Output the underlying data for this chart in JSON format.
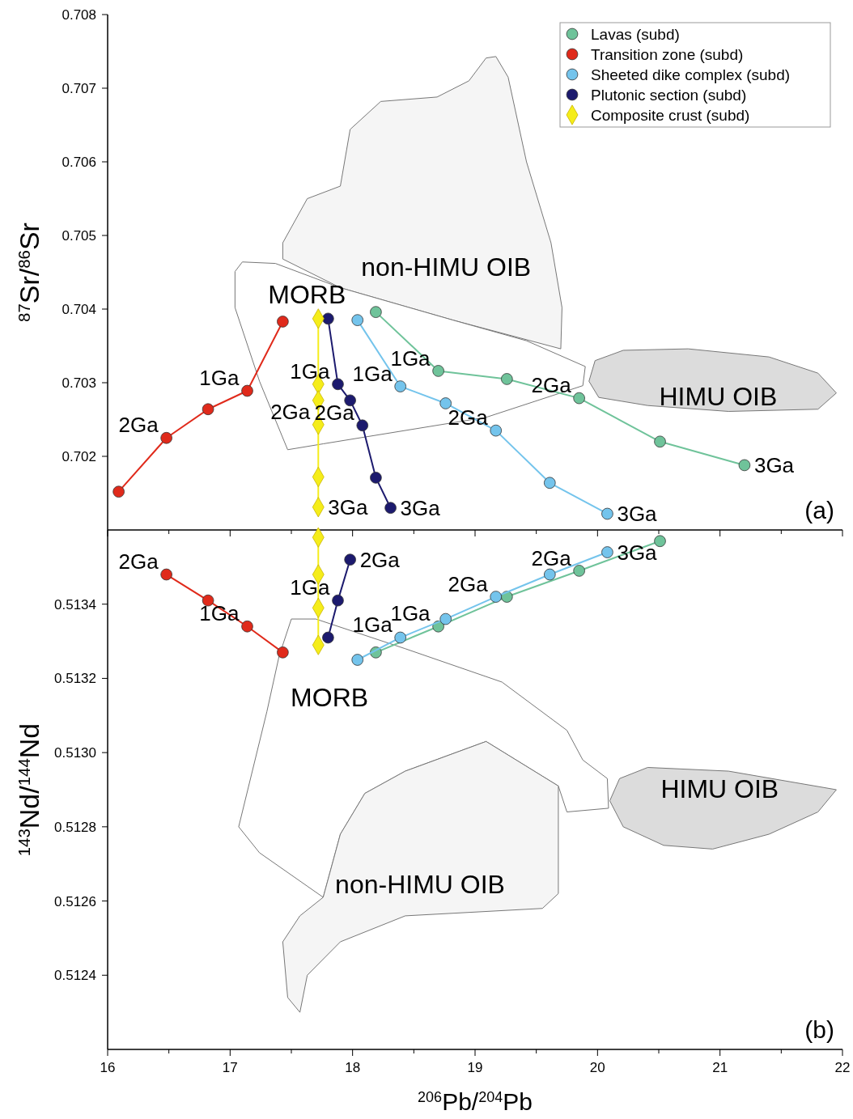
{
  "chart_data": [
    {
      "type": "line",
      "xlim": [
        16,
        22
      ],
      "xticks": [
        16,
        {
          "value": 16.5,
          "label": null
        },
        17,
        {
          "value": 17.5,
          "label": null
        },
        18,
        {
          "value": 18.5,
          "label": null
        },
        19,
        {
          "value": 19.5,
          "label": null
        },
        20,
        {
          "value": 20.5,
          "label": null
        },
        21,
        {
          "value": 21.5,
          "label": null
        },
        22
      ],
      "ylim": [
        0.701,
        0.708
      ],
      "yticks": [
        0.702,
        0.703,
        0.704,
        0.705,
        0.706,
        0.707,
        0.708
      ],
      "ylabel": "$^{87}$Sr/$^{86}$Sr",
      "tick_labels": "y",
      "legend": "top right",
      "grid": false,
      "marker": "circle",
      "series": [
        {
          "type": "area",
          "name": "non-HIMU OIB",
          "color": "#f5f5f5",
          "marker": "none",
          "x": [
            18.82,
            17.9,
            17.43,
            17.43,
            17.63,
            17.9,
            17.98,
            18.23,
            18.69,
            18.95,
            19.09,
            19.17,
            19.27,
            19.42,
            19.62,
            19.71,
            19.7,
            18.82
          ],
          "values": [
            0.70385,
            0.70429,
            0.70468,
            0.7049,
            0.7055,
            0.70567,
            0.70644,
            0.70682,
            0.70688,
            0.7071,
            0.70741,
            0.70743,
            0.70715,
            0.706,
            0.7049,
            0.70402,
            0.70346,
            0.70385
          ]
        },
        {
          "type": "area",
          "name": "MORB",
          "color": "#ffffff",
          "marker": "none",
          "x": [
            17.04,
            17.1,
            17.37,
            17.9,
            18.82,
            19.42,
            19.9,
            19.88,
            19.09,
            17.76,
            17.47,
            17.24,
            17.04,
            17.04
          ],
          "values": [
            0.70451,
            0.70464,
            0.70462,
            0.70429,
            0.70385,
            0.70357,
            0.70322,
            0.70296,
            0.70253,
            0.70217,
            0.70209,
            0.70302,
            0.70402,
            0.70451
          ]
        },
        {
          "type": "area",
          "name": "HIMU OIB",
          "color": "#dcdcdc",
          "marker": "none",
          "x": [
            21.07,
            20.41,
            20.01,
            19.93,
            19.98,
            20.21,
            20.74,
            21.4,
            21.8,
            21.95,
            21.8,
            21.07
          ],
          "values": [
            0.70261,
            0.70269,
            0.7028,
            0.70302,
            0.7033,
            0.70344,
            0.70346,
            0.70335,
            0.70313,
            0.70286,
            0.70264,
            0.70261
          ]
        },
        {
          "name": "Lavas (subd)",
          "color": "#6fc39a",
          "x": [
            18.19,
            18.7,
            19.26,
            19.85,
            20.51,
            21.2
          ],
          "values": [
            0.70396,
            0.70316,
            0.70305,
            0.70279,
            0.7022,
            0.70188
          ]
        },
        {
          "name": "Transition zone (subd)",
          "color": "#e02a1b",
          "x": [
            16.09,
            16.48,
            16.82,
            17.14,
            17.43
          ],
          "values": [
            0.70152,
            0.70225,
            0.70264,
            0.70289,
            0.70383
          ]
        },
        {
          "name": "Sheeted dike complex (subd)",
          "color": "#74c4ec",
          "x": [
            18.04,
            18.39,
            18.76,
            19.17,
            19.61,
            20.08
          ],
          "values": [
            0.70385,
            0.70295,
            0.70272,
            0.70235,
            0.70164,
            0.70122
          ]
        },
        {
          "name": "Plutonic section (subd)",
          "color": "#1c1a6e",
          "x": [
            17.8,
            17.88,
            17.98,
            18.08,
            18.19,
            18.31
          ],
          "values": [
            0.70387,
            0.70298,
            0.70276,
            0.70242,
            0.70171,
            0.7013
          ]
        },
        {
          "name": "Composite crust (subd)",
          "color": "#f5ed1a",
          "marker": "diamond",
          "x": [
            17.72,
            17.72,
            17.72,
            17.72,
            17.72,
            17.72
          ],
          "values": [
            0.70387,
            0.70298,
            0.70276,
            0.70243,
            0.70172,
            0.70131
          ]
        }
      ],
      "annotations": [
        {
          "text": "1Ga",
          "x": 17.14,
          "y": 0.70289
        },
        {
          "text": "2Ga",
          "x": 16.48,
          "y": 0.70225
        },
        {
          "text": "1Ga",
          "x": 17.88,
          "y": 0.70298
        },
        {
          "text": "2Ga",
          "x": 17.72,
          "y": 0.70243
        },
        {
          "text": "2Ga",
          "x": 18.08,
          "y": 0.70242
        },
        {
          "text": "3Ga",
          "x": 17.72,
          "y": 0.70131
        },
        {
          "text": "3Ga",
          "x": 18.31,
          "y": 0.7013
        },
        {
          "text": "1Ga",
          "x": 18.7,
          "y": 0.70316
        },
        {
          "text": "1Ga",
          "x": 18.39,
          "y": 0.70295
        },
        {
          "text": "2Ga",
          "x": 19.17,
          "y": 0.70235
        },
        {
          "text": "2Ga",
          "x": 19.85,
          "y": 0.70279
        },
        {
          "text": "3Ga",
          "x": 20.08,
          "y": 0.70122
        },
        {
          "text": "3Ga",
          "x": 21.2,
          "y": 0.70188
        },
        "(a)"
      ]
    },
    {
      "type": "line",
      "xlim": [
        16,
        22
      ],
      "xticks": [
        16,
        {
          "value": 16.5,
          "label": null
        },
        17,
        {
          "value": 17.5,
          "label": null
        },
        18,
        {
          "value": 18.5,
          "label": null
        },
        19,
        {
          "value": 19.5,
          "label": null
        },
        20,
        {
          "value": 20.5,
          "label": null
        },
        21,
        {
          "value": 21.5,
          "label": null
        },
        22
      ],
      "ylim": [
        0.5122,
        0.5136
      ],
      "yticks": [
        {
          "value": 0.5124,
          "label": "0.5124"
        },
        {
          "value": 0.5126,
          "label": "0.5126"
        },
        {
          "value": 0.5128,
          "label": "0.5128"
        },
        {
          "value": 0.513,
          "label": "0.5130"
        },
        {
          "value": 0.5132,
          "label": "0.5132"
        },
        {
          "value": 0.5134,
          "label": "0.5134"
        }
      ],
      "xlabel": "$^{206}$Pb/$^{204}$Pb",
      "ylabel": "$^{143}$Nd/$^{144}$Nd",
      "grid": false,
      "marker": "circle",
      "series": [
        {
          "type": "area",
          "name": "MORB",
          "color": "#ffffff",
          "marker": "none",
          "x": [
            17.4,
            17.5,
            17.7,
            18.43,
            19.22,
            19.75,
            19.88,
            20.08,
            20.09,
            19.75,
            19.68,
            19.09,
            18.43,
            18.1,
            17.9,
            17.76,
            17.24,
            17.07,
            17.3,
            17.4
          ],
          "values": [
            0.51326,
            0.51336,
            0.51336,
            0.51328,
            0.51319,
            0.51306,
            0.51298,
            0.51293,
            0.51285,
            0.51284,
            0.51291,
            0.51303,
            0.51295,
            0.51289,
            0.51278,
            0.51261,
            0.51273,
            0.5128,
            0.51311,
            0.51326
          ]
        },
        {
          "type": "area",
          "name": "non-HIMU OIB",
          "color": "#f5f5f5",
          "marker": "none",
          "x": [
            18.43,
            17.9,
            17.63,
            17.57,
            17.47,
            17.43,
            17.57,
            17.76,
            17.9,
            18.1,
            18.43,
            19.09,
            19.68,
            19.68,
            19.55,
            18.43
          ],
          "values": [
            0.51256,
            0.51249,
            0.5124,
            0.5123,
            0.51234,
            0.51249,
            0.51256,
            0.51261,
            0.51278,
            0.51289,
            0.51295,
            0.51303,
            0.51291,
            0.51262,
            0.51258,
            0.51256
          ]
        },
        {
          "type": "area",
          "name": "HIMU OIB",
          "color": "#dcdcdc",
          "marker": "none",
          "x": [
            21.07,
            21.95,
            21.8,
            21.4,
            20.94,
            20.54,
            20.21,
            20.1,
            20.18,
            20.41,
            21.07
          ],
          "values": [
            0.51295,
            0.5129,
            0.51284,
            0.51278,
            0.51274,
            0.51275,
            0.5128,
            0.51287,
            0.51293,
            0.51296,
            0.51295
          ]
        },
        {
          "color": "#6fc39a",
          "x": [
            18.19,
            18.7,
            19.26,
            19.85,
            20.51
          ],
          "values": [
            0.51327,
            0.51334,
            0.51342,
            0.51349,
            0.51357
          ]
        },
        {
          "color": "#e02a1b",
          "x": [
            16.48,
            16.82,
            17.14,
            17.43
          ],
          "values": [
            0.51348,
            0.51341,
            0.51334,
            0.51327
          ]
        },
        {
          "color": "#74c4ec",
          "x": [
            18.04,
            18.39,
            18.76,
            19.17,
            19.61,
            20.08
          ],
          "values": [
            0.51325,
            0.51331,
            0.51336,
            0.51342,
            0.51348,
            0.51354
          ]
        },
        {
          "color": "#1c1a6e",
          "x": [
            17.8,
            17.88,
            17.98
          ],
          "values": [
            0.51331,
            0.51341,
            0.51352
          ]
        },
        {
          "color": "#f5ed1a",
          "marker": "diamond",
          "x": [
            17.72,
            17.72,
            17.72,
            17.72
          ],
          "values": [
            0.51358,
            0.51348,
            0.51339,
            0.51329
          ]
        }
      ],
      "annotations": [
        {
          "text": "2Ga",
          "x": 17.98,
          "y": 0.51352
        },
        {
          "text": "2Ga",
          "x": 16.48,
          "y": 0.51348
        },
        {
          "text": "1Ga",
          "x": 17.88,
          "y": 0.51341
        },
        {
          "text": "1Ga",
          "x": 17.14,
          "y": 0.51334
        },
        {
          "text": "1Ga",
          "x": 18.39,
          "y": 0.51331
        },
        {
          "text": "1Ga",
          "x": 18.7,
          "y": 0.51334
        },
        {
          "text": "2Ga",
          "x": 19.17,
          "y": 0.51342
        },
        {
          "text": "2Ga",
          "x": 19.85,
          "y": 0.51349
        },
        {
          "text": "3Ga",
          "x": 20.08,
          "y": 0.51354
        },
        "(b)"
      ]
    }
  ]
}
